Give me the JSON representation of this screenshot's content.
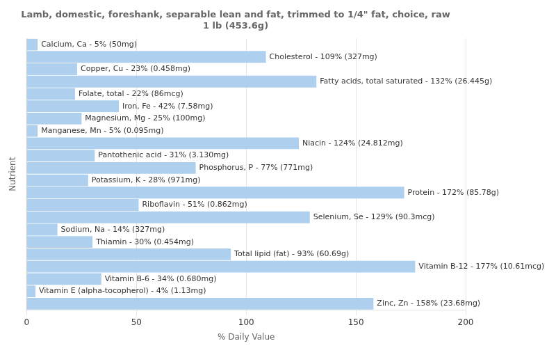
{
  "chart_data": {
    "type": "bar",
    "orientation": "horizontal",
    "title": "Lamb, domestic, foreshank, separable lean and fat, trimmed to 1/4\" fat, choice, raw\n1 lb (453.6g)",
    "xlabel": "% Daily Value",
    "ylabel": "Nutrient",
    "categories": [
      "Calcium, Ca - 5% (50mg)",
      "Cholesterol - 109% (327mg)",
      "Copper, Cu - 23% (0.458mg)",
      "Fatty acids, total saturated - 132% (26.445g)",
      "Folate, total - 22% (86mcg)",
      "Iron, Fe - 42% (7.58mg)",
      "Magnesium, Mg - 25% (100mg)",
      "Manganese, Mn - 5% (0.095mg)",
      "Niacin - 124% (24.812mg)",
      "Pantothenic acid - 31% (3.130mg)",
      "Phosphorus, P - 77% (771mg)",
      "Potassium, K - 28% (971mg)",
      "Protein - 172% (85.78g)",
      "Riboflavin - 51% (0.862mg)",
      "Selenium, Se - 129% (90.3mcg)",
      "Sodium, Na - 14% (327mg)",
      "Thiamin - 30% (0.454mg)",
      "Total lipid (fat) - 93% (60.69g)",
      "Vitamin B-12 - 177% (10.61mcg)",
      "Vitamin B-6 - 34% (0.680mg)",
      "Vitamin E (alpha-tocopherol) - 4% (1.13mg)",
      "Zinc, Zn - 158% (23.68mg)"
    ],
    "values": [
      5,
      109,
      23,
      132,
      22,
      42,
      25,
      5,
      124,
      31,
      77,
      28,
      172,
      51,
      129,
      14,
      30,
      93,
      177,
      34,
      4,
      158
    ],
    "color": "#aed0ee",
    "xlim": [
      0,
      200
    ],
    "xticks": [
      0,
      50,
      100,
      150,
      200
    ],
    "grid": true,
    "tick_labels": "x"
  }
}
